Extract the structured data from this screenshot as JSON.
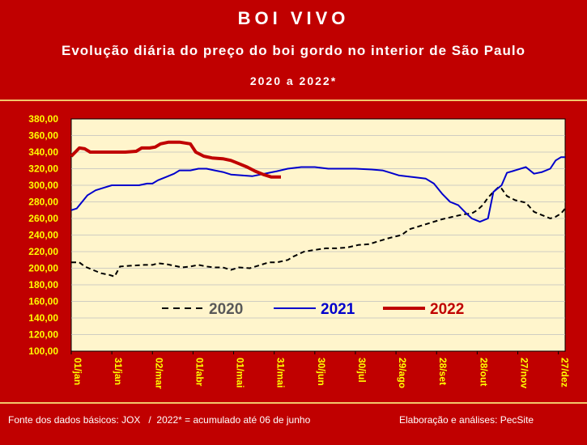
{
  "header": {
    "title": "BOI VIVO",
    "subtitle": "Evolução diária do preço do boi gordo no interior de São Paulo",
    "period": "2020 a 2022*"
  },
  "footer": {
    "source": "Fonte dos dados básicos: JOX   /  2022* = acumulado até 06 de junho",
    "credit": "Elaboração e análises: PecSite"
  },
  "colors": {
    "background": "#c00000",
    "plot": "#fff5cc",
    "axis_labels": "#ffff00",
    "band": "#f2c66a"
  },
  "chart_data": {
    "type": "line",
    "xlim": [
      0,
      365
    ],
    "ylim": [
      100,
      380
    ],
    "x_ticks": [
      {
        "label": "01/jan",
        "day": 0
      },
      {
        "label": "31/jan",
        "day": 30
      },
      {
        "label": "02/mar",
        "day": 60
      },
      {
        "label": "01/abr",
        "day": 90
      },
      {
        "label": "01/mai",
        "day": 120
      },
      {
        "label": "31/mai",
        "day": 150
      },
      {
        "label": "30/jun",
        "day": 180
      },
      {
        "label": "30/jul",
        "day": 210
      },
      {
        "label": "29/ago",
        "day": 240
      },
      {
        "label": "28/set",
        "day": 270
      },
      {
        "label": "28/out",
        "day": 300
      },
      {
        "label": "27/nov",
        "day": 330
      },
      {
        "label": "27/dez",
        "day": 360
      }
    ],
    "y_ticks": [
      "100,00",
      "120,00",
      "140,00",
      "160,00",
      "180,00",
      "200,00",
      "220,00",
      "240,00",
      "260,00",
      "280,00",
      "300,00",
      "320,00",
      "340,00",
      "360,00",
      "380,00"
    ],
    "legend_placement": "bottom-center",
    "series": [
      {
        "name": "2020",
        "color": "#000000",
        "style": "dashed",
        "points": [
          [
            0,
            207
          ],
          [
            6,
            207
          ],
          [
            10,
            202
          ],
          [
            16,
            198
          ],
          [
            22,
            194
          ],
          [
            28,
            192
          ],
          [
            32,
            190
          ],
          [
            36,
            202
          ],
          [
            44,
            203
          ],
          [
            54,
            204
          ],
          [
            60,
            204
          ],
          [
            64,
            206
          ],
          [
            70,
            205
          ],
          [
            76,
            203
          ],
          [
            82,
            201
          ],
          [
            88,
            202
          ],
          [
            94,
            204
          ],
          [
            100,
            202
          ],
          [
            106,
            201
          ],
          [
            112,
            201
          ],
          [
            118,
            198
          ],
          [
            124,
            201
          ],
          [
            132,
            200
          ],
          [
            140,
            204
          ],
          [
            146,
            207
          ],
          [
            152,
            207
          ],
          [
            160,
            210
          ],
          [
            164,
            214
          ],
          [
            172,
            220
          ],
          [
            180,
            222
          ],
          [
            188,
            224
          ],
          [
            196,
            224
          ],
          [
            204,
            225
          ],
          [
            212,
            228
          ],
          [
            220,
            229
          ],
          [
            226,
            232
          ],
          [
            234,
            236
          ],
          [
            244,
            240
          ],
          [
            250,
            247
          ],
          [
            258,
            251
          ],
          [
            266,
            255
          ],
          [
            274,
            259
          ],
          [
            282,
            262
          ],
          [
            290,
            265
          ],
          [
            296,
            266
          ],
          [
            300,
            270
          ],
          [
            304,
            276
          ],
          [
            308,
            285
          ],
          [
            312,
            292
          ],
          [
            316,
            298
          ],
          [
            318,
            296
          ],
          [
            322,
            287
          ],
          [
            328,
            282
          ],
          [
            336,
            279
          ],
          [
            342,
            268
          ],
          [
            348,
            264
          ],
          [
            354,
            260
          ],
          [
            358,
            262
          ],
          [
            362,
            266
          ],
          [
            365,
            272
          ]
        ]
      },
      {
        "name": "2021",
        "color": "#0000cc",
        "style": "solid",
        "points": [
          [
            0,
            270
          ],
          [
            4,
            272
          ],
          [
            8,
            280
          ],
          [
            12,
            288
          ],
          [
            18,
            294
          ],
          [
            24,
            297
          ],
          [
            30,
            300
          ],
          [
            40,
            300
          ],
          [
            50,
            300
          ],
          [
            56,
            302
          ],
          [
            60,
            302
          ],
          [
            64,
            306
          ],
          [
            70,
            310
          ],
          [
            76,
            314
          ],
          [
            80,
            318
          ],
          [
            88,
            318
          ],
          [
            94,
            320
          ],
          [
            100,
            320
          ],
          [
            106,
            318
          ],
          [
            112,
            316
          ],
          [
            118,
            313
          ],
          [
            126,
            312
          ],
          [
            134,
            311
          ],
          [
            140,
            313
          ],
          [
            146,
            315
          ],
          [
            152,
            317
          ],
          [
            160,
            320
          ],
          [
            170,
            322
          ],
          [
            180,
            322
          ],
          [
            190,
            320
          ],
          [
            200,
            320
          ],
          [
            210,
            320
          ],
          [
            222,
            319
          ],
          [
            230,
            318
          ],
          [
            236,
            315
          ],
          [
            242,
            312
          ],
          [
            252,
            310
          ],
          [
            262,
            308
          ],
          [
            268,
            302
          ],
          [
            274,
            290
          ],
          [
            280,
            280
          ],
          [
            286,
            276
          ],
          [
            292,
            266
          ],
          [
            296,
            260
          ],
          [
            302,
            256
          ],
          [
            308,
            260
          ],
          [
            312,
            292
          ],
          [
            318,
            300
          ],
          [
            322,
            315
          ],
          [
            328,
            318
          ],
          [
            336,
            322
          ],
          [
            342,
            314
          ],
          [
            348,
            316
          ],
          [
            354,
            320
          ],
          [
            358,
            330
          ],
          [
            362,
            334
          ],
          [
            365,
            334
          ]
        ]
      },
      {
        "name": "2022",
        "color": "#c00000",
        "style": "solid",
        "points": [
          [
            0,
            335
          ],
          [
            3,
            340
          ],
          [
            6,
            345
          ],
          [
            10,
            344
          ],
          [
            14,
            340
          ],
          [
            20,
            340
          ],
          [
            30,
            340
          ],
          [
            40,
            340
          ],
          [
            48,
            341
          ],
          [
            52,
            345
          ],
          [
            58,
            345
          ],
          [
            62,
            346
          ],
          [
            66,
            350
          ],
          [
            72,
            352
          ],
          [
            80,
            352
          ],
          [
            88,
            350
          ],
          [
            92,
            340
          ],
          [
            98,
            335
          ],
          [
            104,
            333
          ],
          [
            112,
            332
          ],
          [
            118,
            330
          ],
          [
            124,
            326
          ],
          [
            130,
            322
          ],
          [
            136,
            317
          ],
          [
            142,
            313
          ],
          [
            148,
            310
          ],
          [
            155,
            310
          ]
        ]
      }
    ]
  }
}
